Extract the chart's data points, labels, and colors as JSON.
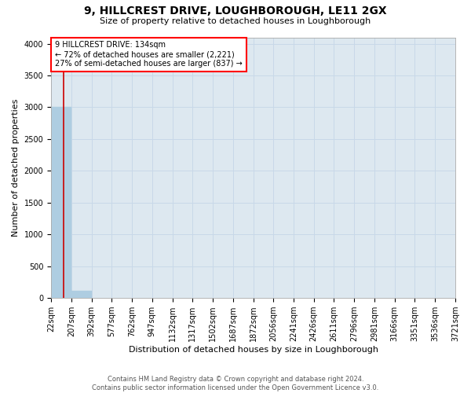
{
  "title": "9, HILLCREST DRIVE, LOUGHBOROUGH, LE11 2GX",
  "subtitle": "Size of property relative to detached houses in Loughborough",
  "xlabel": "Distribution of detached houses by size in Loughborough",
  "ylabel": "Number of detached properties",
  "footer_line1": "Contains HM Land Registry data © Crown copyright and database right 2024.",
  "footer_line2": "Contains public sector information licensed under the Open Government Licence v3.0.",
  "annotation_title": "9 HILLCREST DRIVE: 134sqm",
  "annotation_line1": "← 72% of detached houses are smaller (2,221)",
  "annotation_line2": "27% of semi-detached houses are larger (837) →",
  "property_size": 134,
  "bins": [
    22,
    207,
    392,
    577,
    762,
    947,
    1132,
    1317,
    1502,
    1687,
    1872,
    2056,
    2241,
    2426,
    2611,
    2796,
    2981,
    3166,
    3351,
    3536,
    3721
  ],
  "bar_values": [
    3000,
    110,
    0,
    0,
    0,
    0,
    0,
    0,
    0,
    0,
    0,
    0,
    0,
    0,
    0,
    0,
    0,
    0,
    0,
    0
  ],
  "bar_color": "#aecde1",
  "red_line_x": 134,
  "ylim": [
    0,
    4100
  ],
  "yticks": [
    0,
    500,
    1000,
    1500,
    2000,
    2500,
    3000,
    3500,
    4000
  ],
  "annotation_box_color": "#ff0000",
  "red_line_color": "#cc0000",
  "grid_color": "#c8d8e8",
  "bg_color": "#dde8f0",
  "title_fontsize": 10,
  "subtitle_fontsize": 8,
  "ylabel_fontsize": 8,
  "xlabel_fontsize": 8,
  "tick_fontsize": 7,
  "annotation_fontsize": 7,
  "footer_fontsize": 6
}
